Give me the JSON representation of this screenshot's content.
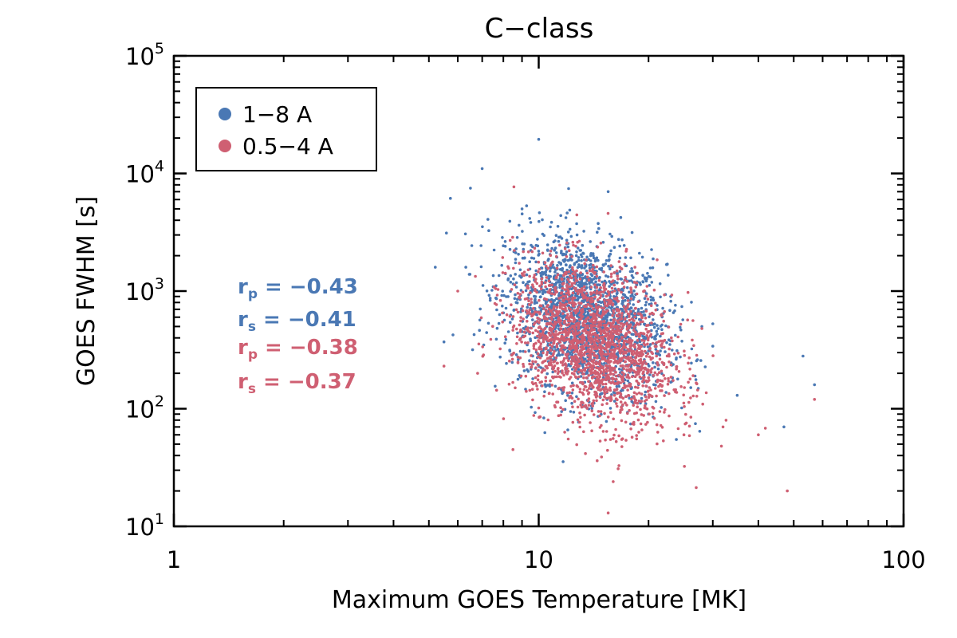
{
  "chart_data": {
    "type": "scatter",
    "title": "C−class",
    "xlabel": "Maximum GOES Temperature [MK]",
    "ylabel": "GOES FWHM [s]",
    "x_scale": "log",
    "y_scale": "log",
    "xlim": [
      1,
      100
    ],
    "ylim": [
      10,
      100000
    ],
    "x_ticks": [
      {
        "value": 1,
        "label": "1"
      },
      {
        "value": 10,
        "label": "10"
      },
      {
        "value": 100,
        "label": "100"
      }
    ],
    "y_ticks": [
      {
        "value": 10,
        "base": "10",
        "exp": "1"
      },
      {
        "value": 100,
        "base": "10",
        "exp": "2"
      },
      {
        "value": 1000,
        "base": "10",
        "exp": "3"
      },
      {
        "value": 10000,
        "base": "10",
        "exp": "4"
      },
      {
        "value": 100000,
        "base": "10",
        "exp": "5"
      }
    ],
    "legend_position": "top-left",
    "series": [
      {
        "name": "1−8 A",
        "color": "#4a78b4",
        "center": {
          "log_x": 1.13,
          "log_y": 2.78
        },
        "spread": {
          "log_x": 0.11,
          "log_y": 0.32
        },
        "approx_count": 2000,
        "points": [
          [
            5.5,
            370
          ],
          [
            6.5,
            7500
          ],
          [
            7.0,
            11000
          ],
          [
            10.0,
            19500
          ],
          [
            15.5,
            7000
          ],
          [
            28.0,
            500
          ],
          [
            30.0,
            340
          ],
          [
            47.0,
            70
          ],
          [
            53.0,
            280
          ],
          [
            57.0,
            160
          ],
          [
            35.0,
            130
          ],
          [
            20.0,
            90
          ],
          [
            9.0,
            5000
          ]
        ],
        "stats": [
          {
            "sym": "r",
            "sub": "p",
            "text": " = −0.43"
          },
          {
            "sym": "r",
            "sub": "s",
            "text": " = −0.41"
          }
        ]
      },
      {
        "name": "0.5−4 A",
        "color": "#cf5f72",
        "center": {
          "log_x": 1.15,
          "log_y": 2.55
        },
        "spread": {
          "log_x": 0.11,
          "log_y": 0.32
        },
        "approx_count": 2000,
        "points": [
          [
            5.5,
            230
          ],
          [
            6.0,
            1000
          ],
          [
            6.8,
            200
          ],
          [
            8.5,
            45
          ],
          [
            16.0,
            24
          ],
          [
            15.5,
            13
          ],
          [
            48.0,
            20
          ],
          [
            40.0,
            60
          ],
          [
            57.0,
            120
          ],
          [
            28.0,
            480
          ],
          [
            32.0,
            70
          ],
          [
            25.0,
            60
          ]
        ],
        "stats": [
          {
            "sym": "r",
            "sub": "p",
            "text": " = −0.38"
          },
          {
            "sym": "r",
            "sub": "s",
            "text": " = −0.37"
          }
        ]
      }
    ]
  }
}
